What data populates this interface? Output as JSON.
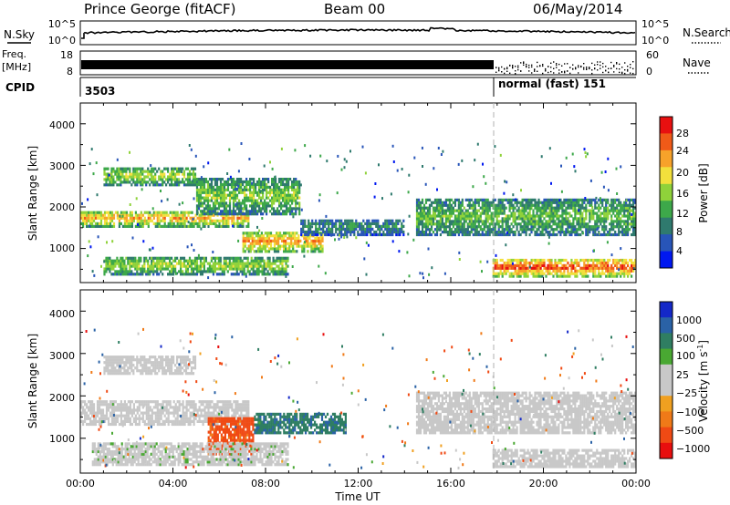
{
  "header": {
    "station": "Prince George (fitACF)",
    "beam": "Beam 00",
    "date": "06/May/2014"
  },
  "top_panels": {
    "nsky_label": "N.Sky",
    "nsky_ticks": [
      "10^5",
      "10^0"
    ],
    "nsearch_label": "N.Search",
    "nsearch_ticks": [
      "10^5",
      "10^0"
    ],
    "freq_label_1": "Freq.",
    "freq_label_2": "[MHz]",
    "freq_ticks": [
      "18",
      "8"
    ],
    "nave_label": "Nave",
    "nave_ticks": [
      "60",
      "0"
    ],
    "cpid_label": "CPID",
    "cpid_first": "3503",
    "cpid_second": "normal (fast) 151"
  },
  "colors": {
    "power": [
      "#0018f0",
      "#2855b8",
      "#2f7a6e",
      "#3da84a",
      "#8fd23a",
      "#f2e03c",
      "#f7a22a",
      "#f05a18",
      "#e81010"
    ],
    "velocity_pos": [
      "#1428c8",
      "#2a62a6",
      "#2f7e62",
      "#49a832"
    ],
    "velocity_mid": "#c8c8c8",
    "velocity_neg": [
      "#f0a020",
      "#f07a18",
      "#f04a14",
      "#e80e0e"
    ]
  },
  "chart_data": [
    {
      "type": "heatmap",
      "title": "Power",
      "ylabel": "Slant Range [km]",
      "xlabel": "",
      "ylim": [
        180,
        4500
      ],
      "xlim": [
        0,
        24
      ],
      "yticks": [
        "1000",
        "2000",
        "3000",
        "4000"
      ],
      "xticks": [
        "00:00",
        "04:00",
        "08:00",
        "12:00",
        "16:00",
        "20:00",
        "00:00"
      ],
      "colorbar": {
        "label": "Power [dB]",
        "ticks": [
          "28",
          "24",
          "20",
          "16",
          "12",
          "8",
          "4"
        ]
      },
      "bands": [
        {
          "t0": 0.0,
          "t1": 7.3,
          "r0": 1500,
          "r1": 1900,
          "level": 0.75
        },
        {
          "t0": 7.0,
          "t1": 10.5,
          "r0": 900,
          "r1": 1400,
          "level": 0.8
        },
        {
          "t0": 1.0,
          "t1": 5.0,
          "r0": 2500,
          "r1": 2950,
          "level": 0.55
        },
        {
          "t0": 5.0,
          "t1": 9.5,
          "r0": 1800,
          "r1": 2700,
          "level": 0.5
        },
        {
          "t0": 9.5,
          "t1": 14.0,
          "r0": 1300,
          "r1": 1700,
          "level": 0.3
        },
        {
          "t0": 14.5,
          "t1": 24.0,
          "r0": 1300,
          "r1": 2200,
          "level": 0.45
        },
        {
          "t0": 17.8,
          "t1": 24.0,
          "r0": 300,
          "r1": 750,
          "level": 0.95
        },
        {
          "t0": 1.0,
          "t1": 9.0,
          "r0": 350,
          "r1": 800,
          "level": 0.55
        }
      ]
    },
    {
      "type": "heatmap",
      "title": "Velocity",
      "ylabel": "Slant Range [km]",
      "xlabel": "Time UT",
      "ylim": [
        180,
        4500
      ],
      "xlim": [
        0,
        24
      ],
      "yticks": [
        "1000",
        "2000",
        "3000",
        "4000"
      ],
      "xticks": [
        "00:00",
        "04:00",
        "08:00",
        "12:00",
        "16:00",
        "20:00",
        "00:00"
      ],
      "colorbar": {
        "label": "Velocity [m s",
        "label_sup": "-1",
        "ticks": [
          "1000",
          "500",
          "100",
          "25",
          "−25",
          "−100",
          "−500",
          "−1000"
        ]
      },
      "bands": [
        {
          "t0": 0.0,
          "t1": 7.3,
          "r0": 1300,
          "r1": 1900,
          "level": 0.0
        },
        {
          "t0": 7.5,
          "t1": 11.5,
          "r0": 1100,
          "r1": 1600,
          "level": 0.45
        },
        {
          "t0": 5.5,
          "t1": 7.5,
          "r0": 600,
          "r1": 1500,
          "level": -0.6
        },
        {
          "t0": 1.0,
          "t1": 5.0,
          "r0": 2500,
          "r1": 2950,
          "level": 0.0
        },
        {
          "t0": 14.5,
          "t1": 24.0,
          "r0": 1100,
          "r1": 2100,
          "level": 0.0
        },
        {
          "t0": 17.8,
          "t1": 24.0,
          "r0": 300,
          "r1": 750,
          "level": 0.0
        },
        {
          "t0": 0.5,
          "t1": 9.0,
          "r0": 350,
          "r1": 900,
          "level": 0.05
        }
      ]
    }
  ]
}
